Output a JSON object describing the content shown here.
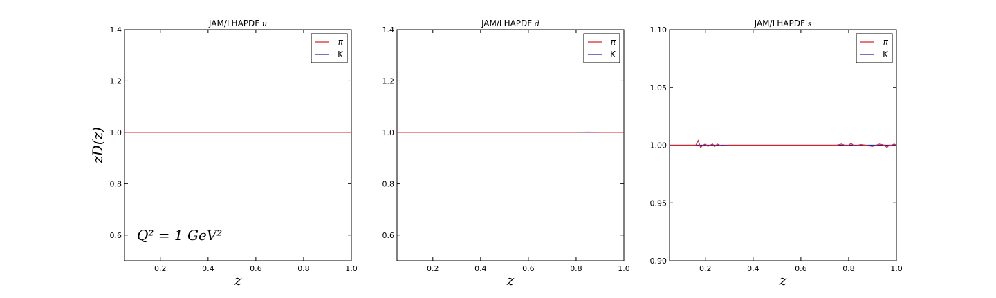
{
  "colors": {
    "pi": "#d62728",
    "K": "#1f1fa8"
  },
  "chart_data": [
    {
      "type": "line",
      "title": "JAM/LHAPDF",
      "title_flavor": "u",
      "xlabel": "z",
      "ylabel": "zD(z)",
      "annotation": "Q² = 1 GeV²",
      "xlim": [
        0.05,
        1.0
      ],
      "ylim": [
        0.5,
        1.4
      ],
      "xticks": [
        "0.2",
        "0.4",
        "0.6",
        "0.8",
        "1.0"
      ],
      "yticks": [
        "0.6",
        "0.8",
        "1.0",
        "1.2",
        "1.4"
      ],
      "legend_position": "top-right",
      "series": [
        {
          "name": "π",
          "x": [
            0.05,
            1.0
          ],
          "y": [
            1.0,
            1.0
          ]
        },
        {
          "name": "K",
          "x": [
            0.05,
            1.0
          ],
          "y": [
            1.0,
            1.0
          ]
        }
      ]
    },
    {
      "type": "line",
      "title": "JAM/LHAPDF",
      "title_flavor": "d",
      "xlabel": "z",
      "ylabel": "",
      "xlim": [
        0.05,
        1.0
      ],
      "ylim": [
        0.5,
        1.4
      ],
      "xticks": [
        "0.2",
        "0.4",
        "0.6",
        "0.8",
        "1.0"
      ],
      "yticks": [
        "0.6",
        "0.8",
        "1.0",
        "1.2",
        "1.4"
      ],
      "legend_position": "top-right",
      "series": [
        {
          "name": "π",
          "x": [
            0.05,
            0.8,
            0.85,
            0.9,
            1.0
          ],
          "y": [
            1.0,
            1.0,
            1.001,
            1.0,
            1.0
          ]
        },
        {
          "name": "K",
          "x": [
            0.05,
            1.0
          ],
          "y": [
            1.0,
            1.0
          ]
        }
      ]
    },
    {
      "type": "line",
      "title": "JAM/LHAPDF",
      "title_flavor": "s",
      "xlabel": "z",
      "ylabel": "",
      "xlim": [
        0.05,
        1.0
      ],
      "ylim": [
        0.9,
        1.1
      ],
      "xticks": [
        "0.2",
        "0.4",
        "0.6",
        "0.8",
        "1.0"
      ],
      "yticks": [
        "0.90",
        "0.95",
        "1.00",
        "1.05",
        "1.10"
      ],
      "legend_position": "top-right",
      "series": [
        {
          "name": "π",
          "x": [
            0.05,
            0.16,
            0.17,
            0.18,
            0.19,
            0.2,
            0.21,
            0.22,
            0.23,
            0.24,
            0.25,
            0.26,
            0.27,
            0.3,
            0.35,
            0.4,
            0.5,
            0.6,
            0.7,
            0.75,
            0.77,
            0.79,
            0.8,
            0.81,
            0.82,
            0.83,
            0.85,
            0.87,
            0.9,
            0.93,
            0.95,
            0.96,
            0.97,
            0.98,
            0.99,
            1.0
          ],
          "y": [
            1.0,
            1.0,
            1.004,
            0.998,
            1.0,
            1.001,
            0.999,
            1.0,
            1.001,
            0.999,
            1.001,
            1.0,
            0.9995,
            1.0,
            1.0,
            1.0,
            1.0,
            1.0,
            1.0,
            1.0,
            1.001,
            0.9995,
            1.0,
            1.0015,
            1.0,
            0.9995,
            1.0005,
            1.0,
            0.999,
            1.001,
            1.0,
            0.998,
            1.0,
            1.0,
            1.001,
            1.0
          ]
        },
        {
          "name": "K",
          "x": [
            0.05,
            1.0
          ],
          "y": [
            1.0,
            1.0
          ]
        }
      ]
    }
  ]
}
